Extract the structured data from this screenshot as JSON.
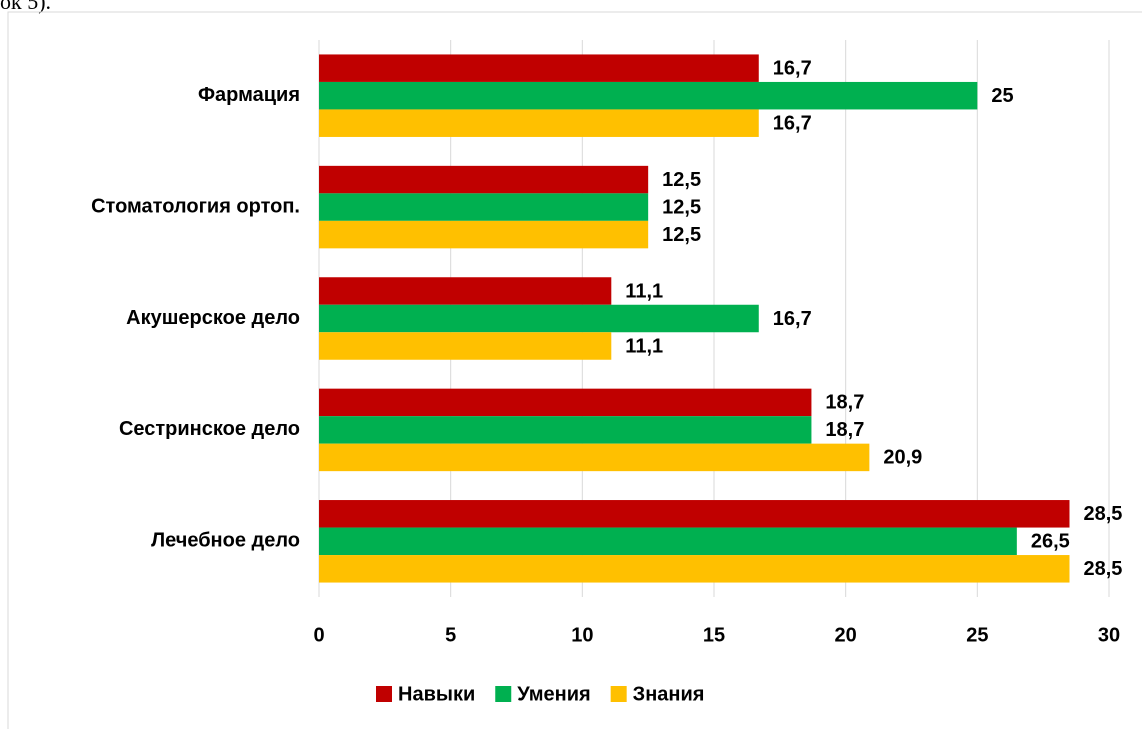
{
  "page_text": "ок 5).",
  "chart_data": {
    "type": "hbar",
    "categories": [
      "Фармация",
      "Стоматология ортоп.",
      "Акушерское дело",
      "Сестринское дело",
      "Лечебное дело"
    ],
    "series": [
      {
        "name": "Навыки",
        "color": "#c00000",
        "values": [
          16.7,
          12.5,
          11.1,
          18.7,
          28.5
        ],
        "value_labels": [
          "16,7",
          "12,5",
          "11,1",
          "18,7",
          "28,5"
        ]
      },
      {
        "name": "Умения",
        "color": "#00b050",
        "values": [
          25,
          12.5,
          16.7,
          18.7,
          26.5
        ],
        "value_labels": [
          "25",
          "12,5",
          "16,7",
          "18,7",
          "26,5"
        ]
      },
      {
        "name": "Знания",
        "color": "#ffc000",
        "values": [
          16.7,
          12.5,
          11.1,
          20.9,
          28.5
        ],
        "value_labels": [
          "16,7",
          "12,5",
          "11,1",
          "20,9",
          "28,5"
        ]
      }
    ],
    "xlim": [
      0,
      30
    ],
    "xticks": [
      0,
      5,
      10,
      15,
      20,
      25,
      30
    ],
    "grid": true,
    "legend": "bottom"
  }
}
